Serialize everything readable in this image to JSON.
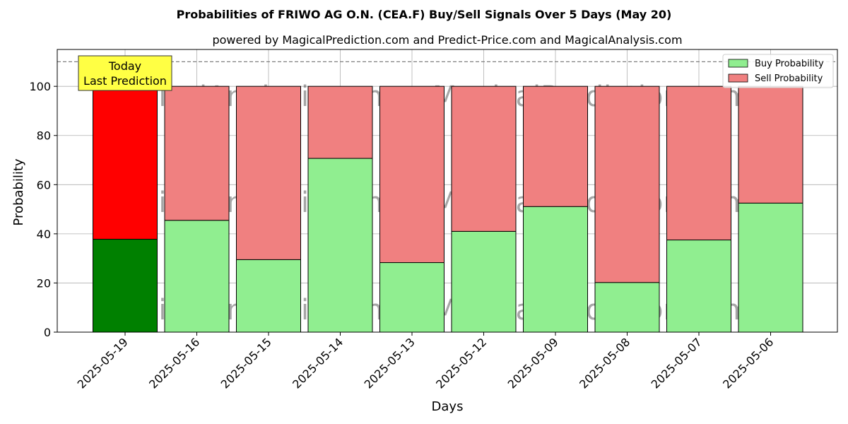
{
  "chart_data": {
    "type": "bar",
    "stacked": true,
    "title": "Probabilities of FRIWO AG O.N. (CEA.F) Buy/Sell Signals Over 5 Days (May 20)",
    "subtitle": "powered by MagicalPrediction.com and Predict-Price.com and MagicalAnalysis.com",
    "xlabel": "Days",
    "ylabel": "Probability",
    "ylim": [
      0,
      115
    ],
    "yticks": [
      0,
      20,
      40,
      60,
      80,
      100
    ],
    "reference_line": 110,
    "grid": true,
    "legend_position": "top-right",
    "categories": [
      "2025-05-19",
      "2025-05-16",
      "2025-05-15",
      "2025-05-14",
      "2025-05-13",
      "2025-05-12",
      "2025-05-09",
      "2025-05-08",
      "2025-05-07",
      "2025-05-06"
    ],
    "series": [
      {
        "name": "Buy Probability",
        "values": [
          37.8,
          45.5,
          29.5,
          70.7,
          28.3,
          41.0,
          51.1,
          20.2,
          37.5,
          52.5
        ],
        "color": "#90ee90",
        "highlight_color": "#008000"
      },
      {
        "name": "Sell Probability",
        "values": [
          62.2,
          54.5,
          70.5,
          29.3,
          71.7,
          59.0,
          48.9,
          79.8,
          62.5,
          47.5
        ],
        "color": "#f08080",
        "highlight_color": "#ff0000"
      }
    ],
    "annotation": {
      "line1": "Today",
      "line2": "Last Prediction",
      "color": "#ffff44"
    },
    "watermarks": [
      "MagicalAnalysis.com",
      "MagicalPrediction.com"
    ]
  }
}
